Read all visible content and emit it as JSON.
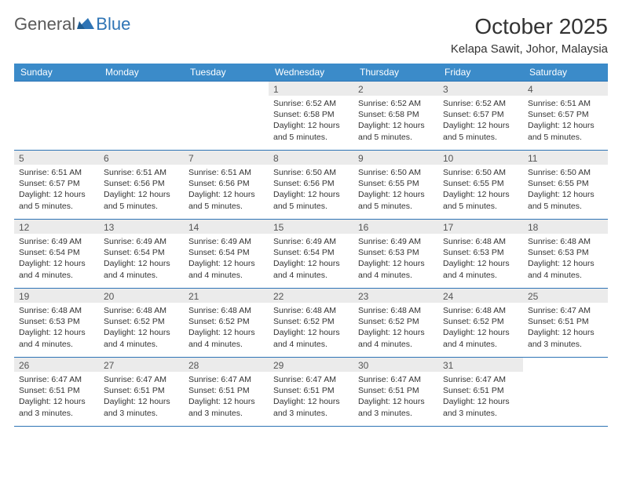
{
  "logo": {
    "text1": "General",
    "text2": "Blue"
  },
  "title": "October 2025",
  "location": "Kelapa Sawit, Johor, Malaysia",
  "colors": {
    "header_bg": "#3b8bc9",
    "header_text": "#ffffff",
    "border": "#2e74b5",
    "daynum_bg": "#ebebeb",
    "logo_gray": "#5a5a5a",
    "logo_blue": "#2e74b5"
  },
  "weekdays": [
    "Sunday",
    "Monday",
    "Tuesday",
    "Wednesday",
    "Thursday",
    "Friday",
    "Saturday"
  ],
  "weeks": [
    [
      null,
      null,
      null,
      {
        "n": "1",
        "sr": "6:52 AM",
        "ss": "6:58 PM",
        "dl": "12 hours and 5 minutes."
      },
      {
        "n": "2",
        "sr": "6:52 AM",
        "ss": "6:58 PM",
        "dl": "12 hours and 5 minutes."
      },
      {
        "n": "3",
        "sr": "6:52 AM",
        "ss": "6:57 PM",
        "dl": "12 hours and 5 minutes."
      },
      {
        "n": "4",
        "sr": "6:51 AM",
        "ss": "6:57 PM",
        "dl": "12 hours and 5 minutes."
      }
    ],
    [
      {
        "n": "5",
        "sr": "6:51 AM",
        "ss": "6:57 PM",
        "dl": "12 hours and 5 minutes."
      },
      {
        "n": "6",
        "sr": "6:51 AM",
        "ss": "6:56 PM",
        "dl": "12 hours and 5 minutes."
      },
      {
        "n": "7",
        "sr": "6:51 AM",
        "ss": "6:56 PM",
        "dl": "12 hours and 5 minutes."
      },
      {
        "n": "8",
        "sr": "6:50 AM",
        "ss": "6:56 PM",
        "dl": "12 hours and 5 minutes."
      },
      {
        "n": "9",
        "sr": "6:50 AM",
        "ss": "6:55 PM",
        "dl": "12 hours and 5 minutes."
      },
      {
        "n": "10",
        "sr": "6:50 AM",
        "ss": "6:55 PM",
        "dl": "12 hours and 5 minutes."
      },
      {
        "n": "11",
        "sr": "6:50 AM",
        "ss": "6:55 PM",
        "dl": "12 hours and 5 minutes."
      }
    ],
    [
      {
        "n": "12",
        "sr": "6:49 AM",
        "ss": "6:54 PM",
        "dl": "12 hours and 4 minutes."
      },
      {
        "n": "13",
        "sr": "6:49 AM",
        "ss": "6:54 PM",
        "dl": "12 hours and 4 minutes."
      },
      {
        "n": "14",
        "sr": "6:49 AM",
        "ss": "6:54 PM",
        "dl": "12 hours and 4 minutes."
      },
      {
        "n": "15",
        "sr": "6:49 AM",
        "ss": "6:54 PM",
        "dl": "12 hours and 4 minutes."
      },
      {
        "n": "16",
        "sr": "6:49 AM",
        "ss": "6:53 PM",
        "dl": "12 hours and 4 minutes."
      },
      {
        "n": "17",
        "sr": "6:48 AM",
        "ss": "6:53 PM",
        "dl": "12 hours and 4 minutes."
      },
      {
        "n": "18",
        "sr": "6:48 AM",
        "ss": "6:53 PM",
        "dl": "12 hours and 4 minutes."
      }
    ],
    [
      {
        "n": "19",
        "sr": "6:48 AM",
        "ss": "6:53 PM",
        "dl": "12 hours and 4 minutes."
      },
      {
        "n": "20",
        "sr": "6:48 AM",
        "ss": "6:52 PM",
        "dl": "12 hours and 4 minutes."
      },
      {
        "n": "21",
        "sr": "6:48 AM",
        "ss": "6:52 PM",
        "dl": "12 hours and 4 minutes."
      },
      {
        "n": "22",
        "sr": "6:48 AM",
        "ss": "6:52 PM",
        "dl": "12 hours and 4 minutes."
      },
      {
        "n": "23",
        "sr": "6:48 AM",
        "ss": "6:52 PM",
        "dl": "12 hours and 4 minutes."
      },
      {
        "n": "24",
        "sr": "6:48 AM",
        "ss": "6:52 PM",
        "dl": "12 hours and 4 minutes."
      },
      {
        "n": "25",
        "sr": "6:47 AM",
        "ss": "6:51 PM",
        "dl": "12 hours and 3 minutes."
      }
    ],
    [
      {
        "n": "26",
        "sr": "6:47 AM",
        "ss": "6:51 PM",
        "dl": "12 hours and 3 minutes."
      },
      {
        "n": "27",
        "sr": "6:47 AM",
        "ss": "6:51 PM",
        "dl": "12 hours and 3 minutes."
      },
      {
        "n": "28",
        "sr": "6:47 AM",
        "ss": "6:51 PM",
        "dl": "12 hours and 3 minutes."
      },
      {
        "n": "29",
        "sr": "6:47 AM",
        "ss": "6:51 PM",
        "dl": "12 hours and 3 minutes."
      },
      {
        "n": "30",
        "sr": "6:47 AM",
        "ss": "6:51 PM",
        "dl": "12 hours and 3 minutes."
      },
      {
        "n": "31",
        "sr": "6:47 AM",
        "ss": "6:51 PM",
        "dl": "12 hours and 3 minutes."
      },
      null
    ]
  ],
  "labels": {
    "sunrise": "Sunrise:",
    "sunset": "Sunset:",
    "daylight": "Daylight:"
  }
}
